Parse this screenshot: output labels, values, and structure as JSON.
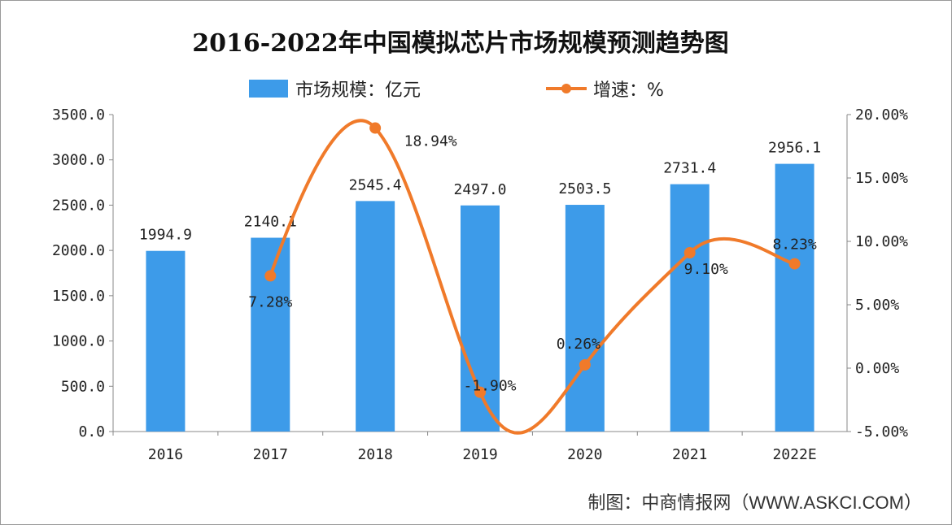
{
  "chart_data": {
    "type": "bar+line",
    "title": "2016-2022年中国模拟芯片市场规模预测趋势图",
    "categories": [
      "2016",
      "2017",
      "2018",
      "2019",
      "2020",
      "2021",
      "2022E"
    ],
    "series": [
      {
        "name": "市场规模：亿元",
        "type": "bar",
        "axis": "left",
        "color": "#3D9BE9",
        "values": [
          1994.9,
          2140.1,
          2545.4,
          2497.0,
          2503.5,
          2731.4,
          2956.1
        ],
        "labels": [
          "1994.9",
          "2140.1",
          "2545.4",
          "2497.0",
          "2503.5",
          "2731.4",
          "2956.1"
        ]
      },
      {
        "name": "增速：%",
        "type": "line",
        "axis": "right",
        "color": "#F07A2A",
        "values": [
          null,
          7.28,
          18.94,
          -1.9,
          0.26,
          9.1,
          8.23
        ],
        "labels": [
          "",
          "7.28%",
          "18.94%",
          "-1.90%",
          "0.26%",
          "9.10%",
          "8.23%"
        ]
      }
    ],
    "y_left": {
      "range": [
        0,
        3500
      ],
      "ticks": [
        "0.0",
        "500.0",
        "1000.0",
        "1500.0",
        "2000.0",
        "2500.0",
        "3000.0",
        "3500.0"
      ]
    },
    "y_right": {
      "range": [
        -5,
        20
      ],
      "ticks": [
        "-5.00%",
        "0.00%",
        "5.00%",
        "10.00%",
        "15.00%",
        "20.00%"
      ]
    },
    "legend_position": "top",
    "grid": false,
    "source": "制图：中商情报网（WWW.ASKCI.COM）"
  }
}
